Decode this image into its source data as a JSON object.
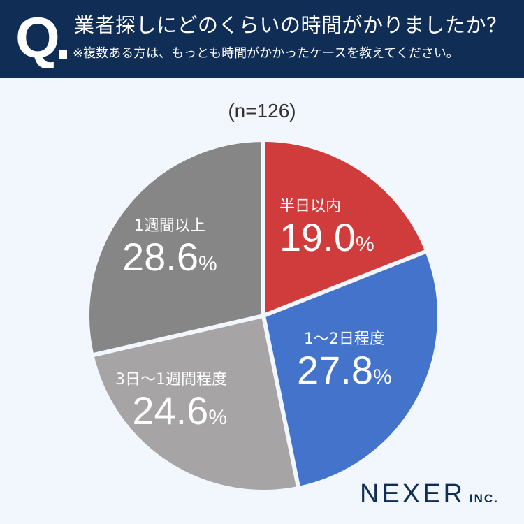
{
  "header": {
    "q_mark": "Q",
    "title": "業者探しにどのくらいの時間がかりましたか？",
    "subtitle": "※複数ある方は、もっとも時間がかかったケースを教えてください。",
    "bg_color": "#0f2d55"
  },
  "sample": "(n=126)",
  "slices": [
    {
      "label": "半日以内",
      "value": "19.0",
      "pct": "%",
      "color": "#d03c3c"
    },
    {
      "label": "1〜2日程度",
      "value": "27.8",
      "pct": "%",
      "color": "#4473cc"
    },
    {
      "label": "3日〜1週間程度",
      "value": "24.6",
      "pct": "%",
      "color": "#a6a4a4"
    },
    {
      "label": "1週間以上",
      "value": "28.6",
      "pct": "%",
      "color": "#878686"
    }
  ],
  "logo": {
    "main": "NEXER",
    "inc": "INC."
  },
  "chart_data": {
    "type": "pie",
    "title": "業者探しにどのくらいの時間がかりましたか？",
    "subtitle": "※複数ある方は、もっとも時間がかかったケースを教えてください。",
    "n": 126,
    "categories": [
      "半日以内",
      "1〜2日程度",
      "3日〜1週間程度",
      "1週間以上"
    ],
    "values": [
      19.0,
      27.8,
      24.6,
      28.6
    ],
    "unit": "%",
    "colors": [
      "#d03c3c",
      "#4473cc",
      "#a6a4a4",
      "#878686"
    ],
    "start_angle": "12 o'clock, clockwise",
    "legend": "none (labels inside slices)"
  }
}
